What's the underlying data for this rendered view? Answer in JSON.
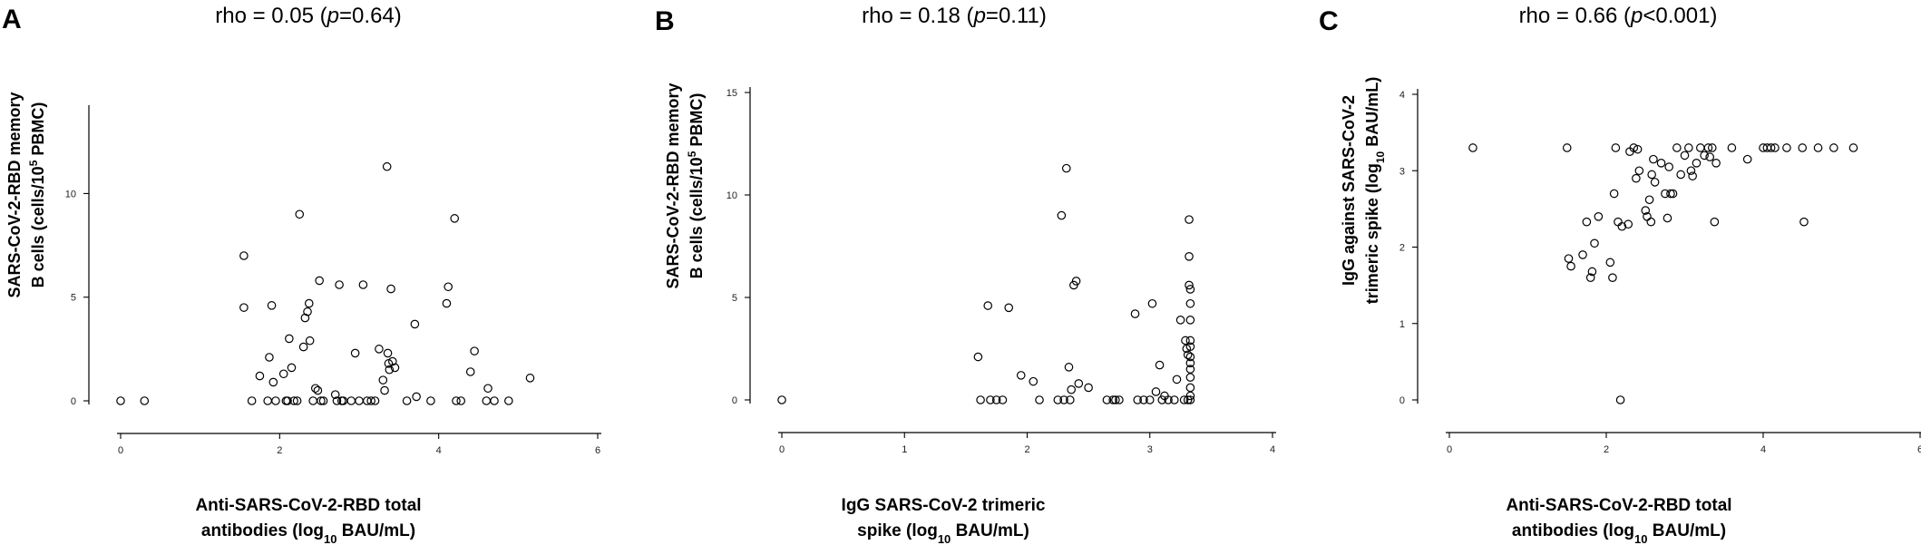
{
  "chart_data": [
    {
      "type": "scatter",
      "panel": "A",
      "title_prefix": "rho = 0.05 (",
      "title_p": "p",
      "title_suffix": "=0.64)",
      "ylabel_line1": "SARS-CoV-2-RBD memory",
      "ylabel_line2_pre": "B cells (cells/10",
      "ylabel_line2_sup": "5",
      "ylabel_line2_post": " PBMC)",
      "xlabel_line1": "Anti-SARS-CoV-2-RBD total",
      "xlabel_line2_pre": "antibodies (log",
      "xlabel_line2_sub": "10",
      "xlabel_line2_post": " BAU/mL)",
      "xlim": [
        0,
        6
      ],
      "ylim": [
        0,
        14
      ],
      "xticks": [
        0,
        2,
        4,
        6
      ],
      "yticks": [
        0,
        5,
        10
      ],
      "points": [
        [
          0.0,
          0
        ],
        [
          0.3,
          0
        ],
        [
          1.55,
          7.0
        ],
        [
          1.55,
          4.5
        ],
        [
          1.65,
          0
        ],
        [
          1.75,
          1.2
        ],
        [
          1.85,
          0
        ],
        [
          1.87,
          2.1
        ],
        [
          1.9,
          4.6
        ],
        [
          1.92,
          0.9
        ],
        [
          1.95,
          0
        ],
        [
          2.05,
          1.3
        ],
        [
          2.08,
          0
        ],
        [
          2.1,
          0
        ],
        [
          2.12,
          3.0
        ],
        [
          2.15,
          1.6
        ],
        [
          2.18,
          0
        ],
        [
          2.22,
          0
        ],
        [
          2.25,
          9.0
        ],
        [
          2.3,
          2.6
        ],
        [
          2.32,
          4.0
        ],
        [
          2.35,
          4.3
        ],
        [
          2.37,
          4.7
        ],
        [
          2.38,
          2.9
        ],
        [
          2.42,
          0
        ],
        [
          2.45,
          0.6
        ],
        [
          2.48,
          0.5
        ],
        [
          2.5,
          5.8
        ],
        [
          2.52,
          0
        ],
        [
          2.55,
          0
        ],
        [
          2.7,
          0.3
        ],
        [
          2.72,
          0
        ],
        [
          2.75,
          5.6
        ],
        [
          2.78,
          0
        ],
        [
          2.8,
          0
        ],
        [
          2.9,
          0
        ],
        [
          2.95,
          2.3
        ],
        [
          3.0,
          0
        ],
        [
          3.05,
          5.6
        ],
        [
          3.1,
          0
        ],
        [
          3.15,
          0
        ],
        [
          3.2,
          0
        ],
        [
          3.25,
          2.5
        ],
        [
          3.3,
          1.0
        ],
        [
          3.32,
          0.5
        ],
        [
          3.35,
          11.3
        ],
        [
          3.36,
          2.3
        ],
        [
          3.37,
          1.8
        ],
        [
          3.38,
          1.5
        ],
        [
          3.4,
          5.4
        ],
        [
          3.42,
          1.9
        ],
        [
          3.45,
          1.6
        ],
        [
          3.6,
          0
        ],
        [
          3.7,
          3.7
        ],
        [
          3.72,
          0.2
        ],
        [
          3.9,
          0
        ],
        [
          4.1,
          4.7
        ],
        [
          4.12,
          5.5
        ],
        [
          4.2,
          8.8
        ],
        [
          4.22,
          0
        ],
        [
          4.28,
          0
        ],
        [
          4.4,
          1.4
        ],
        [
          4.45,
          2.4
        ],
        [
          4.6,
          0
        ],
        [
          4.62,
          0.6
        ],
        [
          4.7,
          0
        ],
        [
          4.88,
          0
        ],
        [
          5.15,
          1.1
        ]
      ]
    },
    {
      "type": "scatter",
      "panel": "B",
      "title_prefix": "rho = 0.18 (",
      "title_p": "p",
      "title_suffix": "=0.11)",
      "ylabel_line1": "SARS-CoV-2-RBD memory",
      "ylabel_line2_pre": "B cells (cells/10",
      "ylabel_line2_sup": "5",
      "ylabel_line2_post": " PBMC)",
      "xlabel_line1": "IgG SARS-CoV-2 trimeric",
      "xlabel_line2_pre": "spike (log",
      "xlabel_line2_sub": "10",
      "xlabel_line2_post": " BAU/mL)",
      "xlim": [
        0,
        4
      ],
      "ylim": [
        0,
        15
      ],
      "xticks": [
        0,
        1,
        2,
        3,
        4
      ],
      "yticks": [
        0,
        5,
        10,
        15
      ],
      "points": [
        [
          0.0,
          0
        ],
        [
          1.6,
          2.1
        ],
        [
          1.62,
          0
        ],
        [
          1.68,
          4.6
        ],
        [
          1.7,
          0
        ],
        [
          1.75,
          0
        ],
        [
          1.8,
          0
        ],
        [
          1.85,
          4.5
        ],
        [
          1.95,
          1.2
        ],
        [
          2.05,
          0.9
        ],
        [
          2.1,
          0
        ],
        [
          2.25,
          0
        ],
        [
          2.28,
          9.0
        ],
        [
          2.3,
          0
        ],
        [
          2.32,
          11.3
        ],
        [
          2.34,
          1.6
        ],
        [
          2.35,
          0
        ],
        [
          2.36,
          0.5
        ],
        [
          2.38,
          5.6
        ],
        [
          2.4,
          5.8
        ],
        [
          2.42,
          0.8
        ],
        [
          2.5,
          0.6
        ],
        [
          2.65,
          0
        ],
        [
          2.7,
          0
        ],
        [
          2.72,
          0
        ],
        [
          2.75,
          0
        ],
        [
          2.88,
          4.2
        ],
        [
          2.9,
          0
        ],
        [
          2.95,
          0
        ],
        [
          3.0,
          0
        ],
        [
          3.02,
          4.7
        ],
        [
          3.05,
          0.4
        ],
        [
          3.08,
          1.7
        ],
        [
          3.1,
          0
        ],
        [
          3.12,
          0.2
        ],
        [
          3.15,
          0
        ],
        [
          3.2,
          0
        ],
        [
          3.22,
          1.0
        ],
        [
          3.25,
          3.9
        ],
        [
          3.28,
          0
        ],
        [
          3.29,
          2.9
        ],
        [
          3.3,
          2.5
        ],
        [
          3.31,
          2.2
        ],
        [
          3.32,
          8.8
        ],
        [
          3.32,
          7.0
        ],
        [
          3.32,
          5.6
        ],
        [
          3.33,
          5.4
        ],
        [
          3.33,
          4.7
        ],
        [
          3.33,
          3.9
        ],
        [
          3.33,
          2.9
        ],
        [
          3.33,
          2.6
        ],
        [
          3.33,
          2.1
        ],
        [
          3.33,
          1.8
        ],
        [
          3.33,
          1.5
        ],
        [
          3.33,
          1.1
        ],
        [
          3.33,
          0.6
        ],
        [
          3.33,
          0.2
        ],
        [
          3.33,
          0
        ],
        [
          3.31,
          0
        ]
      ]
    },
    {
      "type": "scatter",
      "panel": "C",
      "title_prefix": "rho = 0.66 (",
      "title_p": "p",
      "title_suffix": "<0.001)",
      "ylabel_line1": "IgG against SARS-CoV-2",
      "ylabel_line2_pre": "trimeric spike (log",
      "ylabel_line2_sub": "10",
      "ylabel_line2_post": " BAU/mL)",
      "xlabel_line1": "Anti-SARS-CoV-2-RBD total",
      "xlabel_line2_pre": "antibodies (log",
      "xlabel_line2_sub": "10",
      "xlabel_line2_post": " BAU/mL)",
      "xlim": [
        0,
        6
      ],
      "ylim": [
        0,
        4
      ],
      "xticks": [
        0,
        2,
        4,
        6
      ],
      "yticks": [
        0,
        1,
        2,
        3,
        4
      ],
      "points": [
        [
          0.3,
          3.3
        ],
        [
          1.5,
          3.3
        ],
        [
          1.52,
          1.85
        ],
        [
          1.55,
          1.75
        ],
        [
          1.7,
          1.9
        ],
        [
          1.75,
          2.33
        ],
        [
          1.8,
          1.6
        ],
        [
          1.82,
          1.68
        ],
        [
          1.85,
          2.05
        ],
        [
          1.9,
          2.4
        ],
        [
          2.05,
          1.8
        ],
        [
          2.08,
          1.6
        ],
        [
          2.1,
          2.7
        ],
        [
          2.12,
          3.3
        ],
        [
          2.15,
          2.33
        ],
        [
          2.18,
          0
        ],
        [
          2.2,
          2.27
        ],
        [
          2.28,
          2.3
        ],
        [
          2.3,
          3.25
        ],
        [
          2.35,
          3.3
        ],
        [
          2.38,
          2.9
        ],
        [
          2.4,
          3.28
        ],
        [
          2.42,
          3.0
        ],
        [
          2.5,
          2.48
        ],
        [
          2.52,
          2.4
        ],
        [
          2.55,
          2.62
        ],
        [
          2.57,
          2.33
        ],
        [
          2.58,
          2.95
        ],
        [
          2.6,
          3.15
        ],
        [
          2.62,
          2.85
        ],
        [
          2.7,
          3.1
        ],
        [
          2.75,
          2.7
        ],
        [
          2.78,
          2.38
        ],
        [
          2.8,
          3.05
        ],
        [
          2.82,
          2.7
        ],
        [
          2.85,
          2.7
        ],
        [
          2.9,
          3.3
        ],
        [
          2.95,
          2.95
        ],
        [
          3.0,
          3.2
        ],
        [
          3.05,
          3.3
        ],
        [
          3.08,
          3.0
        ],
        [
          3.1,
          2.93
        ],
        [
          3.15,
          3.1
        ],
        [
          3.2,
          3.3
        ],
        [
          3.25,
          3.2
        ],
        [
          3.3,
          3.3
        ],
        [
          3.32,
          3.18
        ],
        [
          3.35,
          3.3
        ],
        [
          3.38,
          2.33
        ],
        [
          3.4,
          3.1
        ],
        [
          3.6,
          3.3
        ],
        [
          3.8,
          3.15
        ],
        [
          4.0,
          3.3
        ],
        [
          4.05,
          3.3
        ],
        [
          4.1,
          3.3
        ],
        [
          4.15,
          3.3
        ],
        [
          4.3,
          3.3
        ],
        [
          4.52,
          2.33
        ],
        [
          4.5,
          3.3
        ],
        [
          4.7,
          3.3
        ],
        [
          4.9,
          3.3
        ],
        [
          5.15,
          3.3
        ]
      ]
    }
  ]
}
